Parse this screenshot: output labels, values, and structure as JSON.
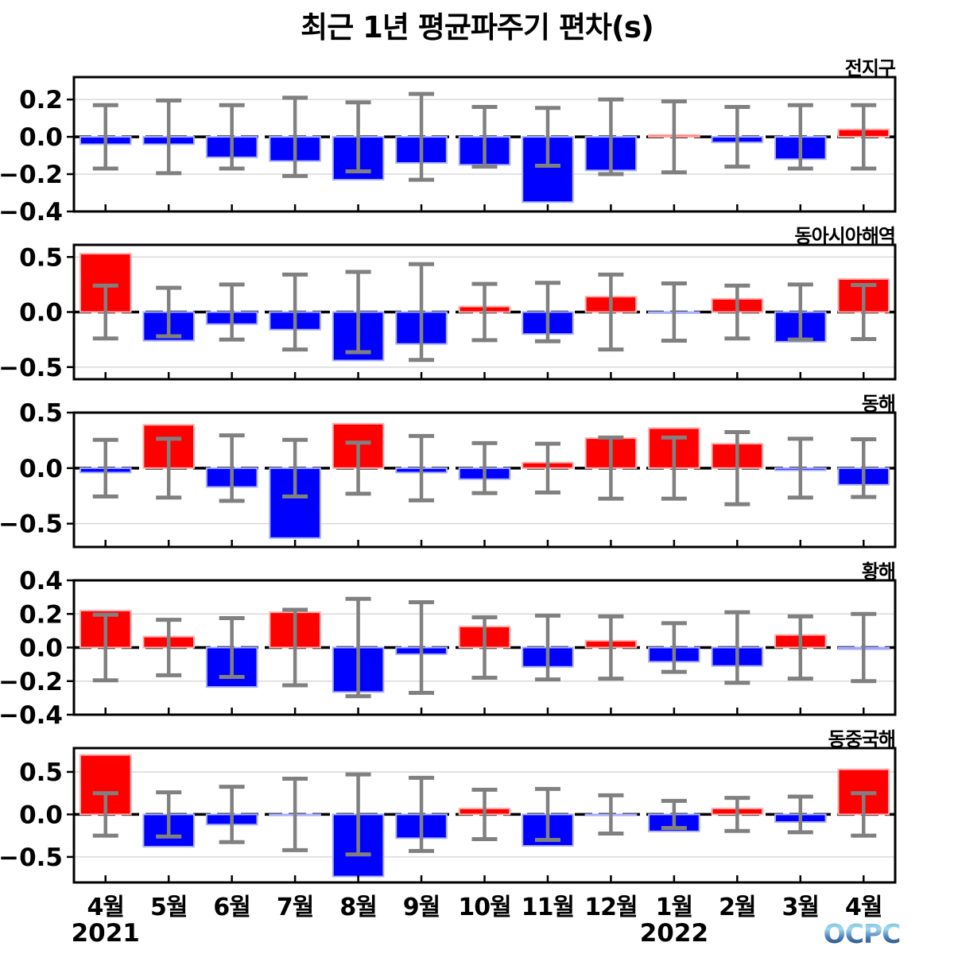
{
  "title": "최근 1년 평균파주기 편차(s)",
  "logo": {
    "text": "OCPC"
  },
  "colors": {
    "positive_bar": "#ff0000",
    "positive_edge": "#ffb0b0",
    "negative_bar": "#0000ff",
    "negative_edge": "#aab0ff",
    "error_bar": "#808080",
    "grid": "#d9d9d9",
    "zero_line": "#000000",
    "frame": "#000000",
    "logo_top": "#56b8e0",
    "logo_light": "#a5d8ee",
    "logo_mid": "#4a7fb5",
    "logo_bottom": "#16355f"
  },
  "x_axis": {
    "months": [
      "4월",
      "5월",
      "6월",
      "7월",
      "8월",
      "9월",
      "10월",
      "11월",
      "12월",
      "1월",
      "2월",
      "3월",
      "4월"
    ],
    "years": [
      {
        "label": "2021",
        "month_index": 0
      },
      {
        "label": "2022",
        "month_index": 9
      }
    ]
  },
  "chart_data": [
    {
      "type": "bar",
      "region": "전지구",
      "categories": [
        "4월",
        "5월",
        "6월",
        "7월",
        "8월",
        "9월",
        "10월",
        "11월",
        "12월",
        "1월",
        "2월",
        "3월",
        "4월"
      ],
      "values": [
        -0.04,
        -0.04,
        -0.11,
        -0.13,
        -0.23,
        -0.14,
        -0.15,
        -0.35,
        -0.18,
        0.01,
        -0.03,
        -0.12,
        0.04
      ],
      "errors": [
        0.17,
        0.195,
        0.17,
        0.21,
        0.185,
        0.23,
        0.16,
        0.155,
        0.2,
        0.19,
        0.16,
        0.17,
        0.17
      ],
      "ylim": [
        -0.4,
        0.32
      ],
      "yticks": [
        0.2,
        0.0,
        -0.2,
        -0.4
      ]
    },
    {
      "type": "bar",
      "region": "동아시아해역",
      "categories": [
        "4월",
        "5월",
        "6월",
        "7월",
        "8월",
        "9월",
        "10월",
        "11월",
        "12월",
        "1월",
        "2월",
        "3월",
        "4월"
      ],
      "values": [
        0.53,
        -0.26,
        -0.11,
        -0.16,
        -0.44,
        -0.29,
        0.05,
        -0.2,
        0.14,
        -0.01,
        0.12,
        -0.27,
        0.3
      ],
      "errors": [
        0.24,
        0.22,
        0.25,
        0.34,
        0.365,
        0.435,
        0.255,
        0.265,
        0.34,
        0.26,
        0.24,
        0.25,
        0.245
      ],
      "ylim": [
        -0.61,
        0.61
      ],
      "yticks": [
        0.5,
        0.0,
        -0.5
      ]
    },
    {
      "type": "bar",
      "region": "동해",
      "categories": [
        "4월",
        "5월",
        "6월",
        "7월",
        "8월",
        "9월",
        "10월",
        "11월",
        "12월",
        "1월",
        "2월",
        "3월",
        "4월"
      ],
      "values": [
        -0.04,
        0.39,
        -0.17,
        -0.63,
        0.4,
        -0.04,
        -0.1,
        0.05,
        0.27,
        0.36,
        0.22,
        -0.02,
        -0.15
      ],
      "errors": [
        0.255,
        0.265,
        0.295,
        0.255,
        0.23,
        0.29,
        0.225,
        0.22,
        0.275,
        0.275,
        0.325,
        0.265,
        0.26
      ],
      "ylim": [
        -0.71,
        0.5
      ],
      "yticks": [
        0.5,
        0.0,
        -0.5
      ]
    },
    {
      "type": "bar",
      "region": "황해",
      "categories": [
        "4월",
        "5월",
        "6월",
        "7월",
        "8월",
        "9월",
        "10월",
        "11월",
        "12월",
        "1월",
        "2월",
        "3월",
        "4월"
      ],
      "values": [
        0.22,
        0.065,
        -0.235,
        0.21,
        -0.265,
        -0.04,
        0.125,
        -0.115,
        0.04,
        -0.085,
        -0.11,
        0.075,
        -0.01
      ],
      "errors": [
        0.195,
        0.165,
        0.175,
        0.225,
        0.29,
        0.27,
        0.18,
        0.19,
        0.185,
        0.145,
        0.21,
        0.185,
        0.2
      ],
      "ylim": [
        -0.4,
        0.4
      ],
      "yticks": [
        0.4,
        0.2,
        0.0,
        -0.2,
        -0.4
      ]
    },
    {
      "type": "bar",
      "region": "동중국해",
      "categories": [
        "4월",
        "5월",
        "6월",
        "7월",
        "8월",
        "9월",
        "10월",
        "11월",
        "12월",
        "1월",
        "2월",
        "3월",
        "4월"
      ],
      "values": [
        0.7,
        -0.38,
        -0.12,
        -0.01,
        -0.73,
        -0.28,
        0.07,
        -0.37,
        -0.01,
        -0.2,
        0.07,
        -0.09,
        0.53
      ],
      "errors": [
        0.25,
        0.26,
        0.325,
        0.42,
        0.47,
        0.43,
        0.29,
        0.3,
        0.225,
        0.16,
        0.195,
        0.21,
        0.25
      ],
      "ylim": [
        -0.8,
        0.78
      ],
      "yticks": [
        0.5,
        0.0,
        -0.5
      ]
    }
  ]
}
